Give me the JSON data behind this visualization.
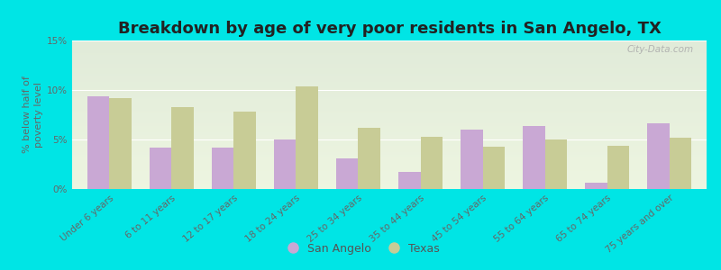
{
  "title": "Breakdown by age of very poor residents in San Angelo, TX",
  "ylabel": "% below half of\npoverty level",
  "categories": [
    "Under 6 years",
    "6 to 11 years",
    "12 to 17 years",
    "18 to 24 years",
    "25 to 34 years",
    "35 to 44 years",
    "45 to 54 years",
    "55 to 64 years",
    "65 to 74 years",
    "75 years and over"
  ],
  "san_angelo": [
    9.4,
    4.2,
    4.2,
    5.0,
    3.1,
    1.7,
    6.0,
    6.4,
    0.6,
    6.6
  ],
  "texas": [
    9.2,
    8.3,
    7.8,
    10.4,
    6.2,
    5.3,
    4.3,
    5.0,
    4.4,
    5.2
  ],
  "san_angelo_color": "#c9a8d4",
  "texas_color": "#c8cc96",
  "background_outer": "#00e5e5",
  "ylim": [
    0,
    15
  ],
  "yticks": [
    0,
    5,
    10,
    15
  ],
  "ytick_labels": [
    "0%",
    "5%",
    "10%",
    "15%"
  ],
  "bar_width": 0.35,
  "title_fontsize": 13,
  "axis_label_fontsize": 8,
  "tick_fontsize": 7.5,
  "legend_fontsize": 9,
  "watermark": "City-Data.com"
}
